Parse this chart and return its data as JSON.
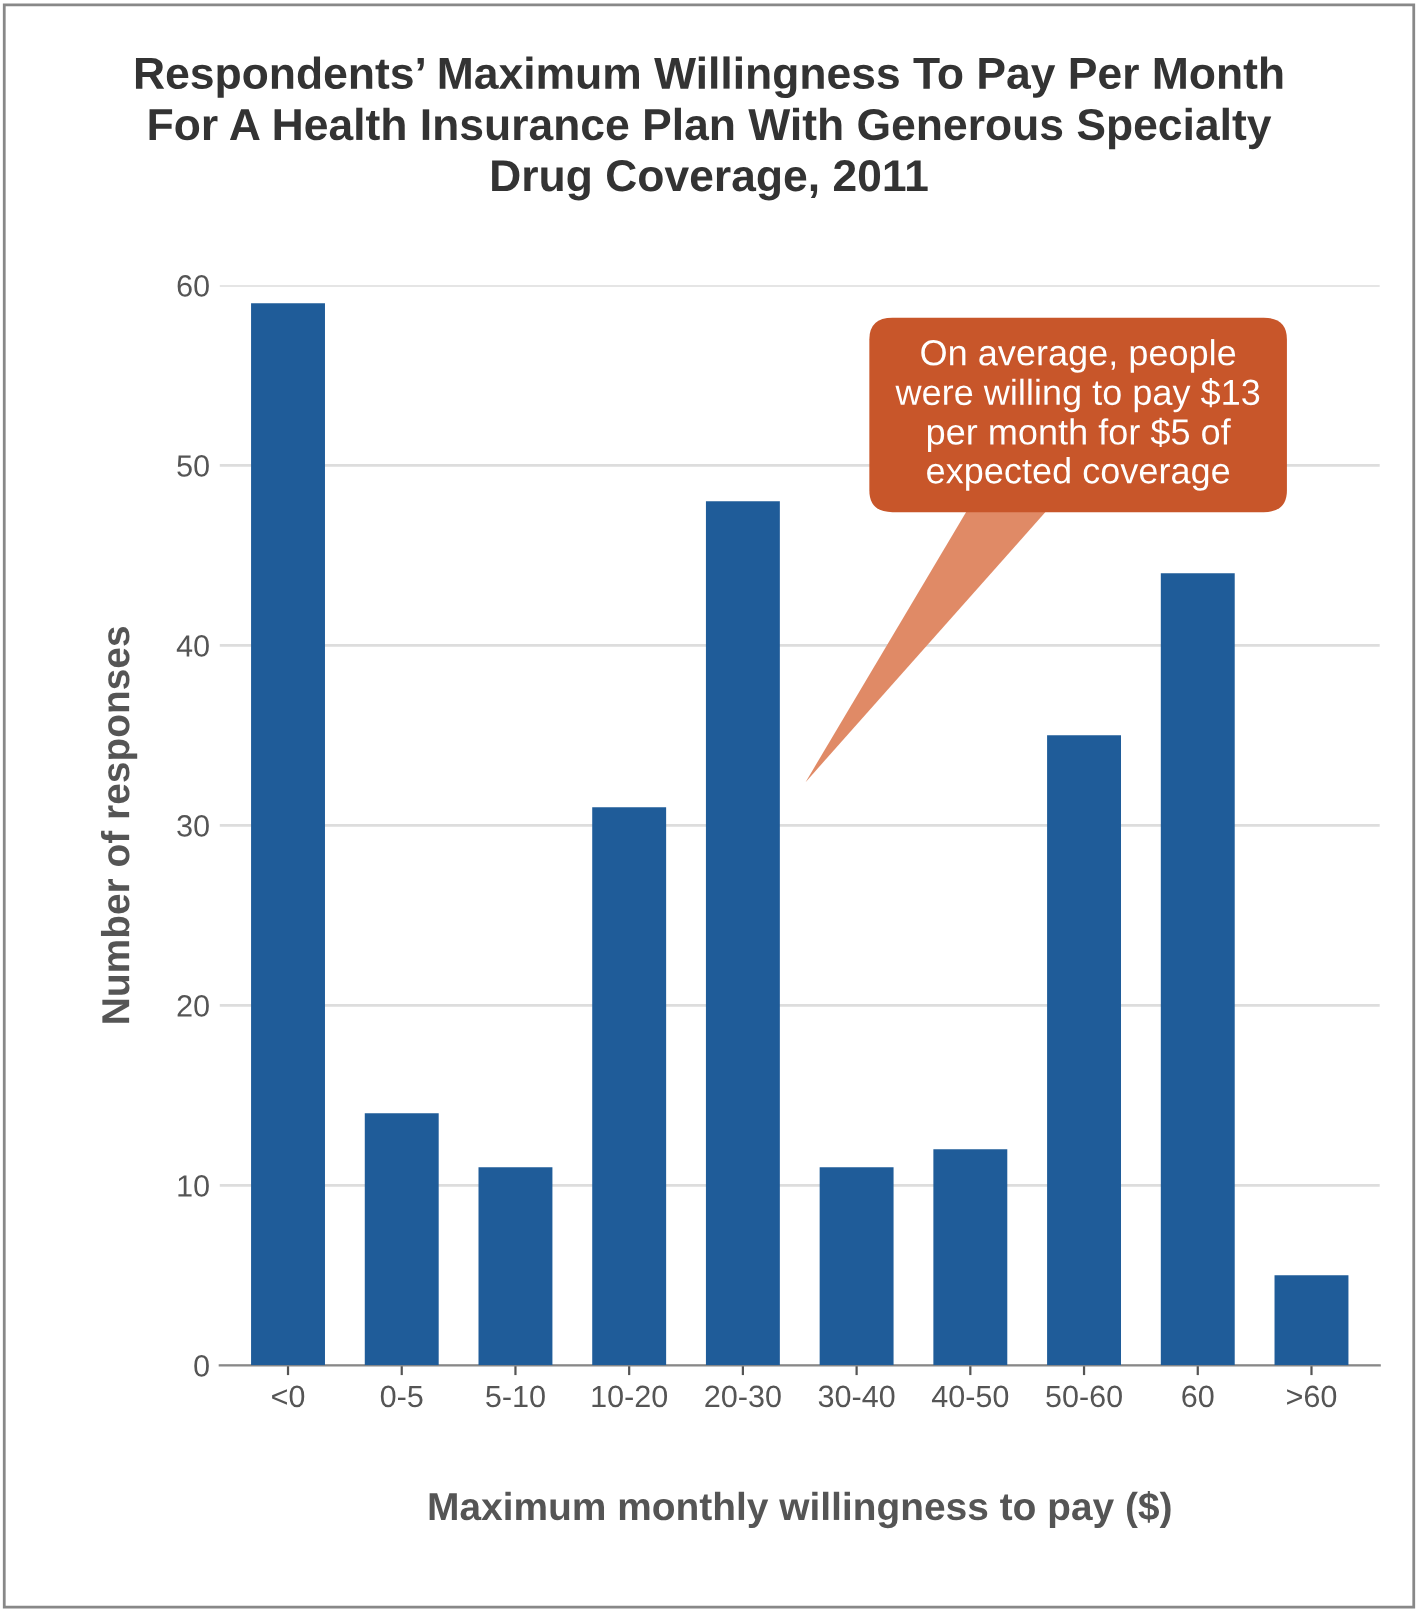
{
  "chart_data": {
    "type": "bar",
    "title": "Respondents’ Maximum Willingness To Pay Per Month\nFor A Health Insurance Plan With Generous Specialty\nDrug Coverage, 2011",
    "xlabel": "Maximum monthly willingness to pay ($)",
    "ylabel": "Number of responses",
    "categories": [
      "<0",
      "0-5",
      "5-10",
      "10-20",
      "20-30",
      "30-40",
      "40-50",
      "50-60",
      "60",
      ">60"
    ],
    "values": [
      59,
      14,
      11,
      31,
      48,
      11,
      12,
      35,
      44,
      5
    ],
    "color": "#1f5c99",
    "ylim": [
      0,
      60
    ],
    "yticks": [
      0,
      10,
      20,
      30,
      40,
      50,
      60
    ],
    "grid": "y",
    "annotations": [
      "On average, people\nwere willing to pay $13\nper month for $5 of\nexpected coverage"
    ]
  }
}
